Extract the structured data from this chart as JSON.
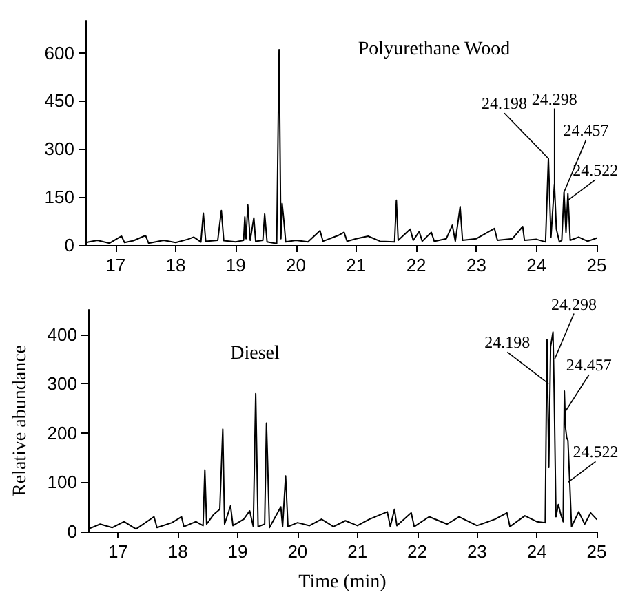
{
  "chart_data": [
    {
      "type": "line",
      "title": "Polyurethane Wood",
      "xlim": [
        16.5,
        25
      ],
      "xticks": [
        17,
        18,
        19,
        20,
        21,
        22,
        23,
        24,
        25
      ],
      "ylim": [
        0,
        700
      ],
      "yticks": [
        0,
        150,
        300,
        450,
        600
      ],
      "grid": false,
      "marker": "none",
      "line_style": "solid",
      "annotations": [
        {
          "text": "24.198",
          "x": 24.198,
          "y": 270
        },
        {
          "text": "24.298",
          "x": 24.298,
          "y": 190
        },
        {
          "text": "24.457",
          "x": 24.457,
          "y": 165
        },
        {
          "text": "24.522",
          "x": 24.522,
          "y": 140
        }
      ],
      "series": [
        {
          "color": "#000000",
          "x": [
            16.5,
            16.7,
            16.9,
            17.1,
            17.15,
            17.3,
            17.5,
            17.55,
            17.8,
            18.0,
            18.2,
            18.3,
            18.42,
            18.46,
            18.5,
            18.7,
            18.76,
            18.8,
            19.0,
            19.13,
            19.15,
            19.17,
            19.2,
            19.24,
            19.3,
            19.33,
            19.45,
            19.48,
            19.52,
            19.68,
            19.72,
            19.75,
            19.77,
            19.8,
            19.83,
            20.0,
            20.2,
            20.4,
            20.45,
            20.7,
            20.8,
            20.85,
            21.0,
            21.2,
            21.4,
            21.64,
            21.67,
            21.7,
            21.9,
            21.95,
            22.05,
            22.1,
            22.25,
            22.3,
            22.5,
            22.6,
            22.65,
            22.73,
            22.77,
            23.0,
            23.3,
            23.35,
            23.6,
            23.77,
            23.8,
            24.0,
            24.15,
            24.198,
            24.24,
            24.298,
            24.33,
            24.38,
            24.42,
            24.457,
            24.49,
            24.522,
            24.56,
            24.7,
            24.85,
            25.0
          ],
          "values": [
            8,
            15,
            6,
            28,
            8,
            14,
            30,
            6,
            15,
            8,
            18,
            25,
            10,
            100,
            12,
            15,
            108,
            14,
            10,
            15,
            88,
            20,
            125,
            15,
            85,
            12,
            15,
            97,
            10,
            5,
            610,
            20,
            130,
            75,
            10,
            15,
            10,
            45,
            12,
            30,
            40,
            12,
            20,
            28,
            12,
            10,
            140,
            15,
            50,
            15,
            42,
            12,
            40,
            12,
            20,
            62,
            12,
            120,
            15,
            20,
            52,
            15,
            20,
            58,
            15,
            18,
            10,
            270,
            25,
            190,
            50,
            10,
            15,
            165,
            40,
            160,
            15,
            25,
            12,
            22
          ]
        }
      ]
    },
    {
      "type": "line",
      "title": "Diesel",
      "xlabel": "Time (min)",
      "ylabel": "Relative abundance",
      "xlim": [
        16.5,
        25
      ],
      "xticks": [
        17,
        18,
        19,
        20,
        21,
        22,
        23,
        24,
        25
      ],
      "ylim": [
        0,
        450
      ],
      "yticks": [
        0,
        100,
        200,
        300,
        400
      ],
      "grid": false,
      "marker": "none",
      "line_style": "solid",
      "annotations": [
        {
          "text": "24.198",
          "x": 24.198,
          "y": 300
        },
        {
          "text": "24.298",
          "x": 24.298,
          "y": 350
        },
        {
          "text": "24.457",
          "x": 24.457,
          "y": 240
        },
        {
          "text": "24.522",
          "x": 24.522,
          "y": 100
        }
      ],
      "series": [
        {
          "color": "#000000",
          "x": [
            16.5,
            16.7,
            16.9,
            17.1,
            17.3,
            17.6,
            17.65,
            17.9,
            18.06,
            18.1,
            18.3,
            18.42,
            18.45,
            18.48,
            18.6,
            18.7,
            18.75,
            18.78,
            18.88,
            18.92,
            19.1,
            19.2,
            19.26,
            19.3,
            19.34,
            19.45,
            19.48,
            19.5,
            19.53,
            19.72,
            19.75,
            19.8,
            19.84,
            20.0,
            20.2,
            20.4,
            20.6,
            20.8,
            21.0,
            21.2,
            21.5,
            21.55,
            21.62,
            21.66,
            21.9,
            21.95,
            22.2,
            22.5,
            22.7,
            23.0,
            23.3,
            23.5,
            23.55,
            23.8,
            24.0,
            24.14,
            24.17,
            24.2,
            24.23,
            24.27,
            24.29,
            24.32,
            24.36,
            24.4,
            24.44,
            24.46,
            24.48,
            24.5,
            24.52,
            24.55,
            24.58,
            24.7,
            24.8,
            24.9,
            25.0
          ],
          "values": [
            5,
            15,
            8,
            20,
            5,
            30,
            8,
            18,
            30,
            10,
            20,
            12,
            125,
            15,
            35,
            45,
            208,
            15,
            52,
            12,
            25,
            42,
            10,
            280,
            10,
            15,
            220,
            140,
            8,
            50,
            10,
            113,
            10,
            18,
            12,
            25,
            10,
            22,
            12,
            25,
            40,
            10,
            45,
            12,
            38,
            10,
            30,
            15,
            30,
            12,
            25,
            38,
            10,
            32,
            20,
            18,
            390,
            130,
            375,
            405,
            280,
            30,
            55,
            35,
            20,
            285,
            210,
            190,
            185,
            100,
            10,
            40,
            15,
            38,
            25
          ]
        }
      ]
    }
  ]
}
